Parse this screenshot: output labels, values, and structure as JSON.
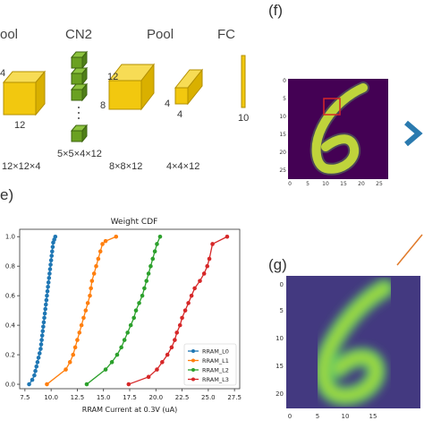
{
  "network": {
    "labels": {
      "pool1": "ool",
      "cn2": "CN2",
      "pool2": "Pool",
      "fc": "FC"
    },
    "dims": {
      "d4": "4",
      "d12_block1": "12",
      "d12_block3": "12",
      "d8": "8",
      "d4_pool_left": "4",
      "d4_pool_bottom": "4",
      "d10": "10",
      "shape1": "12×12×4",
      "shape_cn2": "5×5×4×12",
      "shape_pool": "8×8×12",
      "shape_fc": "4×4×12"
    }
  },
  "panel_f": {
    "label": "(f)",
    "x_ticks": [
      "0",
      "5",
      "10",
      "15",
      "20",
      "25"
    ],
    "y_ticks": [
      "0",
      "5",
      "10",
      "15",
      "20",
      "25"
    ]
  },
  "panel_e": {
    "label": "e)"
  },
  "panel_g": {
    "label": "(g)",
    "x_ticks": [
      "0",
      "5",
      "10",
      "15"
    ],
    "y_ticks": [
      "0",
      "5",
      "10",
      "15",
      "20"
    ]
  },
  "chart_data": {
    "type": "line",
    "title": "Weight CDF",
    "xlabel": "RRAM Current at 0.3V (uA)",
    "ylabel": "",
    "xlim": [
      7,
      28
    ],
    "ylim": [
      -0.03,
      1.05
    ],
    "x_ticks": [
      "7.5",
      "10.0",
      "12.5",
      "15.0",
      "17.5",
      "20.0",
      "22.5",
      "25.0",
      "27.5"
    ],
    "y_ticks": [
      "0.0",
      "0.2",
      "0.4",
      "0.6",
      "0.8",
      "1.0"
    ],
    "legend_position": "lower-right",
    "series": [
      {
        "name": "RRAM_L0",
        "color": "#1f77b4",
        "x": [
          7.9,
          8.2,
          8.4,
          8.5,
          8.6,
          8.7,
          8.8,
          8.9,
          9.0,
          9.05,
          9.1,
          9.15,
          9.2,
          9.25,
          9.3,
          9.35,
          9.4,
          9.45,
          9.5,
          9.55,
          9.6,
          9.65,
          9.7,
          9.75,
          9.8,
          9.85,
          9.9,
          9.95,
          10.0,
          10.05,
          10.1,
          10.15,
          10.2,
          10.3,
          10.4
        ],
        "y": [
          0.0,
          0.03,
          0.06,
          0.09,
          0.12,
          0.15,
          0.18,
          0.21,
          0.24,
          0.27,
          0.3,
          0.33,
          0.36,
          0.39,
          0.42,
          0.45,
          0.48,
          0.51,
          0.54,
          0.57,
          0.6,
          0.63,
          0.66,
          0.69,
          0.72,
          0.75,
          0.78,
          0.81,
          0.84,
          0.87,
          0.9,
          0.93,
          0.96,
          0.98,
          1.0
        ]
      },
      {
        "name": "RRAM_L1",
        "color": "#ff7f0e",
        "x": [
          9.6,
          11.4,
          11.8,
          12.1,
          12.3,
          12.5,
          12.7,
          12.9,
          13.1,
          13.3,
          13.5,
          13.7,
          13.8,
          13.9,
          14.1,
          14.3,
          14.5,
          14.7,
          14.9,
          15.2,
          16.2
        ],
        "y": [
          0.0,
          0.1,
          0.15,
          0.2,
          0.25,
          0.3,
          0.35,
          0.4,
          0.45,
          0.5,
          0.55,
          0.6,
          0.65,
          0.7,
          0.75,
          0.8,
          0.85,
          0.9,
          0.95,
          0.97,
          1.0
        ]
      },
      {
        "name": "RRAM_L2",
        "color": "#2ca02c",
        "x": [
          13.4,
          15.2,
          15.8,
          16.3,
          16.7,
          17.0,
          17.3,
          17.6,
          17.9,
          18.1,
          18.4,
          18.7,
          18.9,
          19.1,
          19.3,
          19.5,
          19.7,
          19.9,
          20.1,
          20.4
        ],
        "y": [
          0.0,
          0.1,
          0.15,
          0.2,
          0.25,
          0.3,
          0.35,
          0.4,
          0.45,
          0.5,
          0.55,
          0.6,
          0.65,
          0.7,
          0.75,
          0.8,
          0.85,
          0.9,
          0.95,
          1.0
        ]
      },
      {
        "name": "RRAM_L3",
        "color": "#d62728",
        "x": [
          17.4,
          19.3,
          20.1,
          20.6,
          21.1,
          21.5,
          21.8,
          22.0,
          22.3,
          22.5,
          22.8,
          23.1,
          23.4,
          23.7,
          24.2,
          24.6,
          24.9,
          25.1,
          25.4,
          26.8
        ],
        "y": [
          0.0,
          0.05,
          0.1,
          0.15,
          0.2,
          0.25,
          0.3,
          0.35,
          0.4,
          0.45,
          0.5,
          0.55,
          0.6,
          0.65,
          0.7,
          0.75,
          0.8,
          0.85,
          0.95,
          1.0
        ]
      }
    ]
  },
  "colors": {
    "block_yellow": "#f2c80f",
    "block_green": "#6aa121",
    "arrow_blue": "#2a7aaf",
    "arrow_orange": "#e07a2a"
  }
}
